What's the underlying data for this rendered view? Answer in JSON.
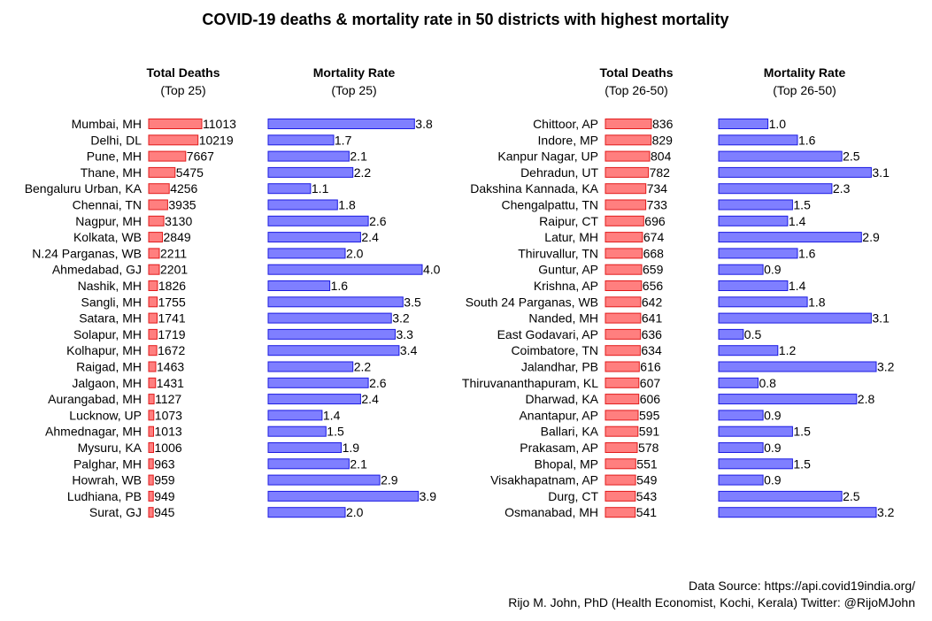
{
  "title": "COVID-19 deaths & mortality rate in 50 districts with highest mortality",
  "caption": {
    "line1": "Data Source: https://api.covid19india.org/",
    "line2": "Rijo M. John, PhD (Health Economist, Kochi, Kerala) Twitter: @RijoMJohn"
  },
  "colors": {
    "deaths_fill": "#ff7f7f",
    "deaths_stroke": "#e21b1b",
    "rate_fill": "#7f7fff",
    "rate_stroke": "#1b1be2"
  },
  "chart_data": [
    {
      "type": "bar",
      "orientation": "horizontal",
      "title": "Total Deaths",
      "subtitle": "(Top 25)",
      "categories": [
        "Mumbai, MH",
        "Delhi, DL",
        "Pune, MH",
        "Thane, MH",
        "Bengaluru Urban, KA",
        "Chennai, TN",
        "Nagpur, MH",
        "Kolkata, WB",
        "N.24 Parganas, WB",
        "Ahmedabad, GJ",
        "Nashik, MH",
        "Sangli, MH",
        "Satara, MH",
        "Solapur, MH",
        "Kolhapur, MH",
        "Raigad, MH",
        "Jalgaon, MH",
        "Aurangabad, MH",
        "Lucknow, UP",
        "Ahmednagar, MH",
        "Mysuru, KA",
        "Palghar, MH",
        "Howrah, WB",
        "Ludhiana, PB",
        "Surat, GJ"
      ],
      "values": [
        11013,
        10219,
        7667,
        5475,
        4256,
        3935,
        3130,
        2849,
        2211,
        2201,
        1826,
        1755,
        1741,
        1719,
        1672,
        1463,
        1431,
        1127,
        1073,
        1013,
        1006,
        963,
        959,
        949,
        945
      ]
    },
    {
      "type": "bar",
      "orientation": "horizontal",
      "title": "Mortality Rate",
      "subtitle": "(Top 25)",
      "values": [
        "3.8",
        "1.7",
        "2.1",
        "2.2",
        "1.1",
        "1.8",
        "2.6",
        "2.4",
        "2.0",
        "4.0",
        "1.6",
        "3.5",
        "3.2",
        "3.3",
        "3.4",
        "2.2",
        "2.6",
        "2.4",
        "1.4",
        "1.5",
        "1.9",
        "2.1",
        "2.9",
        "3.9",
        "2.0"
      ]
    },
    {
      "type": "bar",
      "orientation": "horizontal",
      "title": "Total Deaths",
      "subtitle": "(Top 26-50)",
      "categories": [
        "Chittoor, AP",
        "Indore, MP",
        "Kanpur Nagar, UP",
        "Dehradun, UT",
        "Dakshina Kannada, KA",
        "Chengalpattu, TN",
        "Raipur, CT",
        "Latur, MH",
        "Thiruvallur, TN",
        "Guntur, AP",
        "Krishna, AP",
        "South 24 Parganas, WB",
        "Nanded, MH",
        "East Godavari, AP",
        "Coimbatore, TN",
        "Jalandhar, PB",
        "Thiruvananthapuram, KL",
        "Dharwad, KA",
        "Anantapur, AP",
        "Ballari, KA",
        "Prakasam, AP",
        "Bhopal, MP",
        "Visakhapatnam, AP",
        "Durg, CT",
        "Osmanabad, MH"
      ],
      "values": [
        836,
        829,
        804,
        782,
        734,
        733,
        696,
        674,
        668,
        659,
        656,
        642,
        641,
        636,
        634,
        616,
        607,
        606,
        595,
        591,
        578,
        551,
        549,
        543,
        541
      ]
    },
    {
      "type": "bar",
      "orientation": "horizontal",
      "title": "Mortality Rate",
      "subtitle": "(Top 26-50)",
      "values": [
        "1.0",
        "1.6",
        "2.5",
        "3.1",
        "2.3",
        "1.5",
        "1.4",
        "2.9",
        "1.6",
        "0.9",
        "1.4",
        "1.8",
        "3.1",
        "0.5",
        "1.2",
        "3.2",
        "0.8",
        "2.8",
        "0.9",
        "1.5",
        "0.9",
        "1.5",
        "0.9",
        "2.5",
        "3.2"
      ]
    }
  ]
}
